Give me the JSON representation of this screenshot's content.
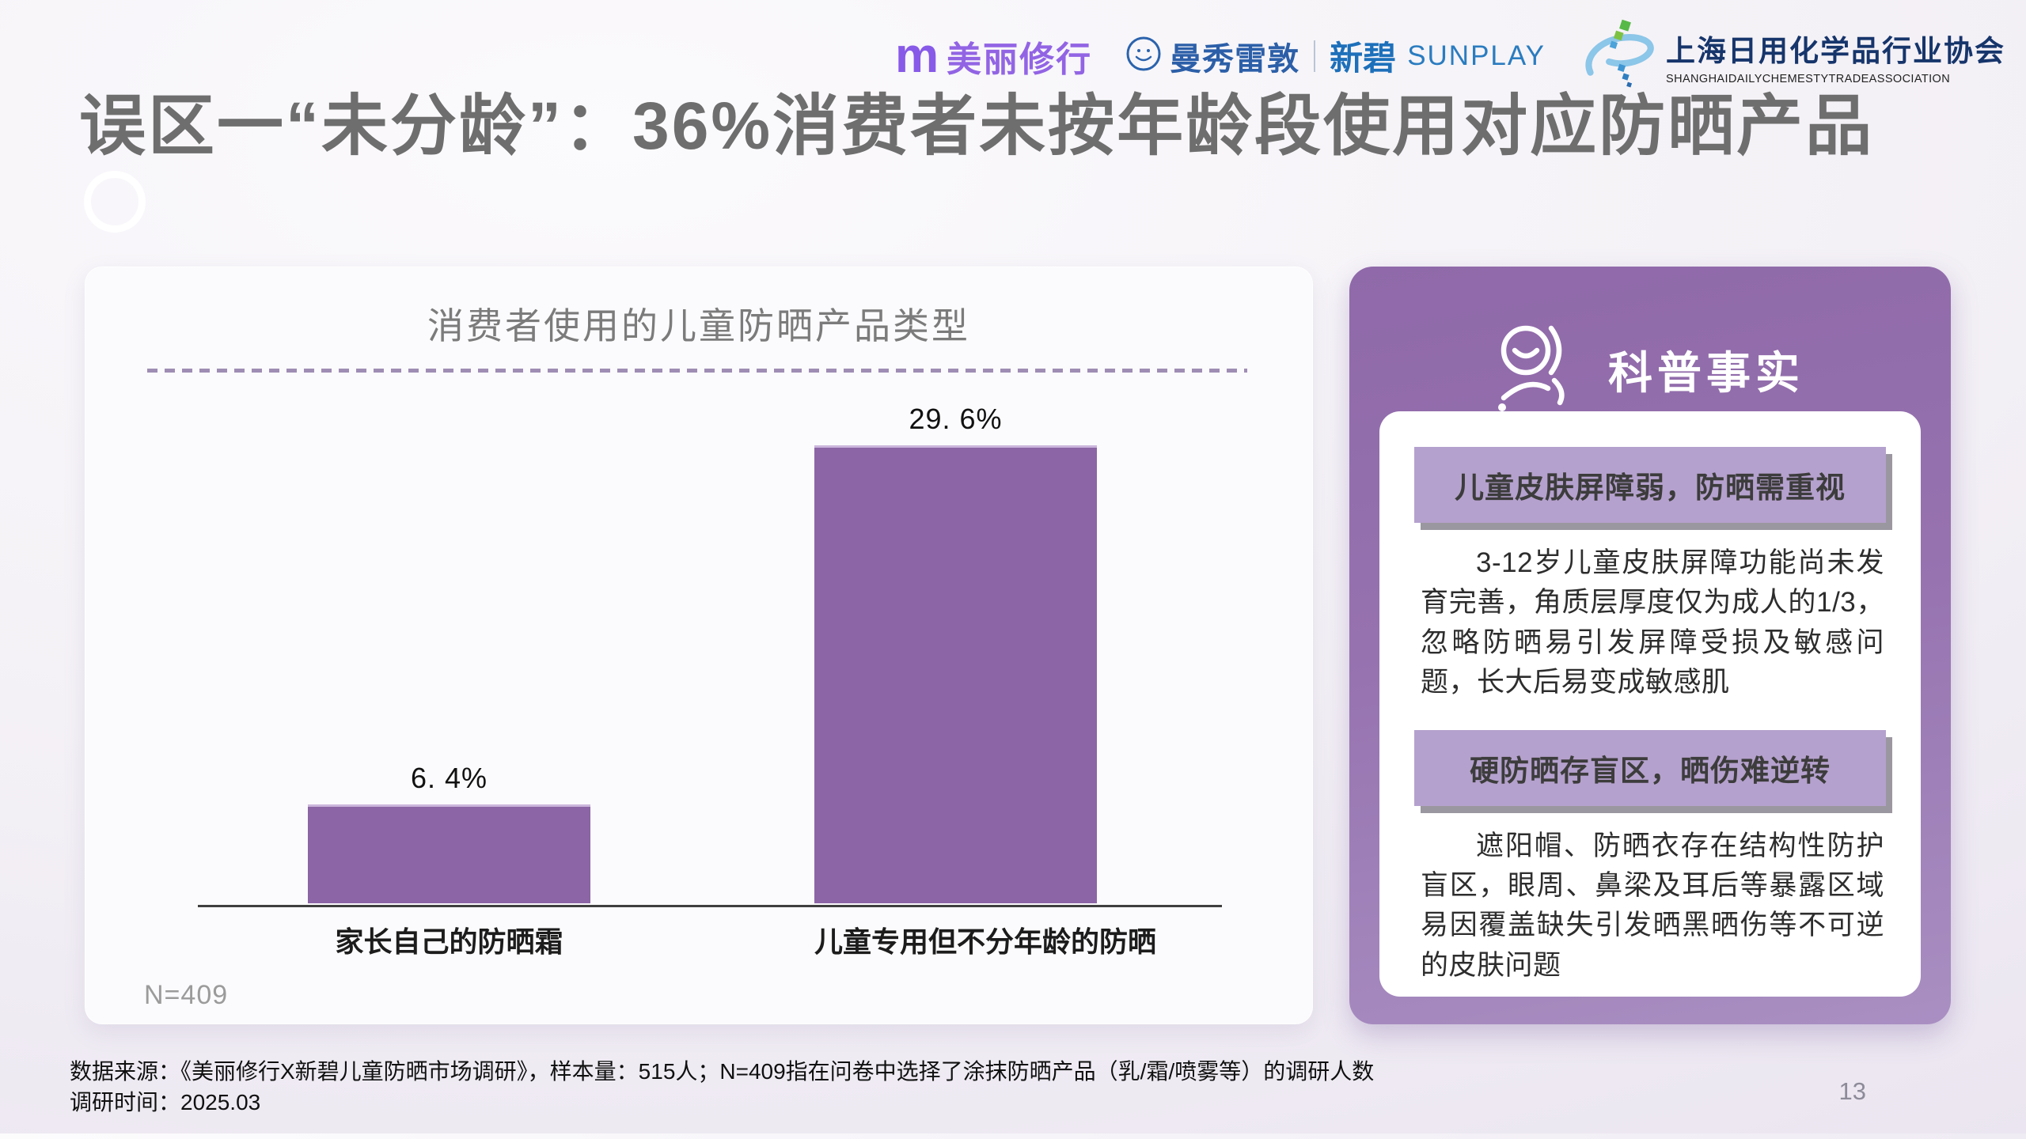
{
  "slide": {
    "title": "误区一“未分龄”：36%消费者未按年龄段使用对应防晒产品",
    "page_number": "13",
    "footnote_line1": "数据来源：《美丽修行X新碧儿童防晒市场调研》，样本量：515人；N=409指在问卷中选择了涂抹防晒产品（乳/霜/喷雾等）的调研人数",
    "footnote_line2": "调研时间：2025.03"
  },
  "logos": {
    "meilixiuxing": {
      "mark": "m",
      "name": "美丽修行"
    },
    "mentholatum": {
      "name": "曼秀雷敦",
      "brand": "新碧",
      "brand_en": "SUNPLAY"
    },
    "association": {
      "name_cn": "上海日用化学品行业协会",
      "name_en": "SHANGHAIDAILYCHEMESTYTRADEASSOCIATION"
    }
  },
  "chart_card": {
    "title": "消费者使用的儿童防晒产品类型",
    "sample_note": "N=409",
    "bars": [
      {
        "label": "家长自己的防晒霜",
        "value_label": "6. 4%"
      },
      {
        "label": "儿童专用但不分年龄的防晒",
        "value_label": "29. 6%"
      }
    ]
  },
  "chart_data": {
    "type": "bar",
    "title": "消费者使用的儿童防晒产品类型",
    "categories": [
      "家长自己的防晒霜",
      "儿童专用但不分年龄的防晒"
    ],
    "values": [
      6.4,
      29.6
    ],
    "unit": "%",
    "sample_size": "N=409",
    "ylim": [
      0,
      32
    ],
    "grid": false,
    "legend": "none",
    "bar_color": "#8b65a5"
  },
  "fact_card": {
    "header": "科普事实",
    "sections": [
      {
        "heading": "儿童皮肤屏障弱，防晒需重视",
        "body": "3-12岁儿童皮肤屏障功能尚未发育完善，角质层厚度仅为成人的1/3，忽略防晒易引发屏障受损及敏感问题，长大后易变成敏感肌"
      },
      {
        "heading": "硬防晒存盲区，晒伤难逆转",
        "body": "遮阳帽、防晒衣存在结构性防护盲区，眼周、鼻梁及耳后等暴露区域易因覆盖缺失引发晒黑晒伤等不可逆的皮肤问题"
      }
    ]
  },
  "colors": {
    "title_gray": "#6e6e6e",
    "bar_purple": "#8b65a5",
    "card_purple": "#9672af",
    "banner_purple": "#b5a1cd",
    "brand_purple": "#8a5ce0",
    "brand_blue": "#2a6db5",
    "axis_gray": "#3f3f3f",
    "background_lavender": "#e7e1ee"
  }
}
